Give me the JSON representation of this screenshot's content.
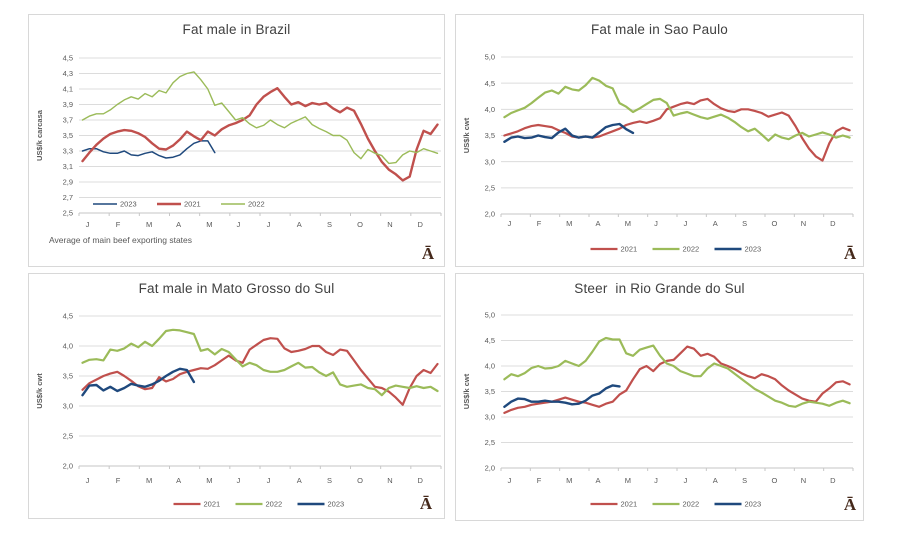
{
  "page": {
    "background": "#ffffff"
  },
  "colors": {
    "series_2021": "#C0504D",
    "series_2022": "#9BBB59",
    "series_2023": "#1F497D",
    "gridline": "#DCDCDC",
    "axis_line": "#C6C6C6",
    "axis_text": "#595959",
    "title_text": "#404040",
    "panel_border": "#D8D8D8",
    "watermark": "#45291B"
  },
  "watermark_glyph": "Ā",
  "chart_data": [
    {
      "id": "brazil",
      "type": "line",
      "title": "Fat male in Brazil",
      "ylabel": "US$/k carcasa",
      "ylim": [
        2.5,
        4.5
      ],
      "y_ticks": [
        "4,5",
        "4,3",
        "4,1",
        "3,9",
        "3,7",
        "3,5",
        "3,3",
        "3,1",
        "2,9",
        "2,7",
        "2,5"
      ],
      "x_tick_labels": [
        "J",
        "F",
        "M",
        "A",
        "M",
        "J",
        "J",
        "A",
        "S",
        "O",
        "N",
        "D"
      ],
      "x_resolution": "weekly",
      "grid": true,
      "legend_position": "inside-bottom-left",
      "footnote": "Average  of main beef exporting states",
      "watermark": "Ā",
      "series": [
        {
          "name": "2023",
          "color": "#1F497D",
          "values": [
            3.3,
            3.33,
            3.33,
            3.29,
            3.27,
            3.27,
            3.3,
            3.25,
            3.24,
            3.27,
            3.29,
            3.24,
            3.21,
            3.22,
            3.25,
            3.33,
            3.4,
            3.43,
            3.43,
            3.28
          ]
        },
        {
          "name": "2021",
          "color": "#C0504D",
          "values": [
            3.17,
            3.28,
            3.38,
            3.46,
            3.52,
            3.55,
            3.57,
            3.56,
            3.53,
            3.48,
            3.4,
            3.33,
            3.32,
            3.37,
            3.45,
            3.55,
            3.49,
            3.44,
            3.55,
            3.5,
            3.58,
            3.63,
            3.66,
            3.7,
            3.76,
            3.9,
            4.0,
            4.06,
            4.11,
            4.0,
            3.9,
            3.93,
            3.88,
            3.92,
            3.9,
            3.92,
            3.85,
            3.8,
            3.86,
            3.82,
            3.65,
            3.46,
            3.3,
            3.16,
            3.06,
            3.0,
            2.92,
            2.97,
            3.32,
            3.56,
            3.52,
            3.64
          ]
        },
        {
          "name": "2022",
          "color": "#9BBB59",
          "values": [
            3.7,
            3.75,
            3.78,
            3.78,
            3.83,
            3.9,
            3.96,
            4.0,
            3.97,
            4.04,
            4.0,
            4.08,
            4.05,
            4.18,
            4.26,
            4.3,
            4.32,
            4.22,
            4.1,
            3.89,
            3.92,
            3.81,
            3.7,
            3.73,
            3.65,
            3.6,
            3.63,
            3.7,
            3.64,
            3.6,
            3.66,
            3.7,
            3.74,
            3.64,
            3.59,
            3.55,
            3.5,
            3.5,
            3.44,
            3.28,
            3.2,
            3.32,
            3.27,
            3.24,
            3.14,
            3.15,
            3.25,
            3.3,
            3.28,
            3.33,
            3.3,
            3.27
          ]
        }
      ]
    },
    {
      "id": "saopaulo",
      "type": "line",
      "title": "Fat male in Sao Paulo",
      "ylabel": "US$/k cwt",
      "ylim": [
        2.0,
        5.0
      ],
      "y_ticks": [
        "5,0",
        "4,5",
        "4,0",
        "3,5",
        "3,0",
        "2,5",
        "2,0"
      ],
      "x_tick_labels": [
        "J",
        "F",
        "M",
        "A",
        "M",
        "J",
        "J",
        "A",
        "S",
        "O",
        "N",
        "D"
      ],
      "x_resolution": "weekly",
      "grid": true,
      "legend_position": "bottom-center",
      "footnote": "",
      "watermark": "Ā",
      "series": [
        {
          "name": "2021",
          "color": "#C0504D",
          "values": [
            3.5,
            3.54,
            3.58,
            3.64,
            3.68,
            3.7,
            3.68,
            3.66,
            3.6,
            3.55,
            3.48,
            3.46,
            3.48,
            3.46,
            3.48,
            3.53,
            3.58,
            3.63,
            3.7,
            3.74,
            3.77,
            3.74,
            3.78,
            3.83,
            4.0,
            4.05,
            4.1,
            4.13,
            4.1,
            4.17,
            4.2,
            4.1,
            4.02,
            3.97,
            3.95,
            4.0,
            4.0,
            3.97,
            3.93,
            3.86,
            3.9,
            3.94,
            3.88,
            3.68,
            3.45,
            3.25,
            3.1,
            3.02,
            3.35,
            3.58,
            3.65,
            3.6
          ]
        },
        {
          "name": "2022",
          "color": "#9BBB59",
          "values": [
            3.85,
            3.93,
            3.98,
            4.03,
            4.12,
            4.22,
            4.32,
            4.36,
            4.3,
            4.43,
            4.38,
            4.36,
            4.46,
            4.6,
            4.55,
            4.45,
            4.4,
            4.12,
            4.05,
            3.95,
            4.02,
            4.1,
            4.18,
            4.2,
            4.12,
            3.88,
            3.92,
            3.95,
            3.9,
            3.85,
            3.82,
            3.86,
            3.9,
            3.84,
            3.76,
            3.66,
            3.58,
            3.63,
            3.52,
            3.4,
            3.52,
            3.46,
            3.43,
            3.5,
            3.55,
            3.48,
            3.52,
            3.56,
            3.52,
            3.46,
            3.5,
            3.46
          ]
        },
        {
          "name": "2023",
          "color": "#1F497D",
          "values": [
            3.38,
            3.46,
            3.48,
            3.45,
            3.46,
            3.5,
            3.47,
            3.45,
            3.56,
            3.63,
            3.5,
            3.46,
            3.48,
            3.46,
            3.56,
            3.66,
            3.7,
            3.72,
            3.62,
            3.55
          ]
        }
      ]
    },
    {
      "id": "matogrosso",
      "type": "line",
      "title": "Fat male in Mato Grosso do Sul",
      "ylabel": "US$/k cwt",
      "ylim": [
        2.0,
        4.5
      ],
      "y_ticks": [
        "4,5",
        "4,0",
        "3,5",
        "3,0",
        "2,5",
        "2,0"
      ],
      "x_tick_labels": [
        "J",
        "F",
        "M",
        "A",
        "M",
        "J",
        "J",
        "A",
        "S",
        "O",
        "N",
        "D"
      ],
      "x_resolution": "weekly",
      "grid": true,
      "legend_position": "bottom-center",
      "footnote": "",
      "watermark": "Ā",
      "series": [
        {
          "name": "2021",
          "color": "#C0504D",
          "values": [
            3.27,
            3.38,
            3.44,
            3.5,
            3.54,
            3.57,
            3.5,
            3.42,
            3.33,
            3.28,
            3.3,
            3.48,
            3.41,
            3.45,
            3.53,
            3.57,
            3.6,
            3.63,
            3.62,
            3.68,
            3.76,
            3.84,
            3.76,
            3.72,
            3.94,
            4.02,
            4.1,
            4.13,
            4.12,
            3.96,
            3.9,
            3.92,
            3.95,
            4.0,
            4.0,
            3.9,
            3.85,
            3.94,
            3.92,
            3.76,
            3.6,
            3.46,
            3.32,
            3.3,
            3.24,
            3.14,
            3.02,
            3.3,
            3.5,
            3.6,
            3.55,
            3.7
          ]
        },
        {
          "name": "2022",
          "color": "#9BBB59",
          "values": [
            3.72,
            3.77,
            3.78,
            3.76,
            3.94,
            3.92,
            3.96,
            4.04,
            3.98,
            4.07,
            4.0,
            4.12,
            4.25,
            4.27,
            4.26,
            4.23,
            4.2,
            3.92,
            3.95,
            3.86,
            3.95,
            3.9,
            3.78,
            3.66,
            3.72,
            3.68,
            3.6,
            3.57,
            3.57,
            3.6,
            3.66,
            3.72,
            3.64,
            3.65,
            3.56,
            3.5,
            3.56,
            3.36,
            3.32,
            3.34,
            3.36,
            3.3,
            3.28,
            3.18,
            3.3,
            3.34,
            3.32,
            3.3,
            3.33,
            3.3,
            3.32,
            3.25
          ]
        },
        {
          "name": "2023",
          "color": "#1F497D",
          "values": [
            3.18,
            3.34,
            3.35,
            3.26,
            3.32,
            3.25,
            3.3,
            3.37,
            3.34,
            3.32,
            3.36,
            3.42,
            3.5,
            3.57,
            3.62,
            3.6,
            3.4
          ]
        }
      ]
    },
    {
      "id": "riogrande",
      "type": "line",
      "title": "Steer  in Rio Grande do Sul",
      "ylabel": "US$/k cwt",
      "ylim": [
        2.0,
        5.0
      ],
      "y_ticks": [
        "5,0",
        "4,5",
        "4,0",
        "3,5",
        "3,0",
        "2,5",
        "2,0"
      ],
      "x_tick_labels": [
        "J",
        "F",
        "M",
        "A",
        "M",
        "J",
        "J",
        "A",
        "S",
        "O",
        "N",
        "D"
      ],
      "x_resolution": "weekly",
      "grid": true,
      "legend_position": "bottom-center",
      "footnote": "",
      "watermark": "Ā",
      "series": [
        {
          "name": "2021",
          "color": "#C0504D",
          "values": [
            3.08,
            3.14,
            3.18,
            3.2,
            3.24,
            3.26,
            3.28,
            3.3,
            3.34,
            3.38,
            3.34,
            3.3,
            3.28,
            3.24,
            3.2,
            3.26,
            3.3,
            3.44,
            3.52,
            3.74,
            3.94,
            4.0,
            3.9,
            4.04,
            4.1,
            4.12,
            4.25,
            4.38,
            4.34,
            4.2,
            4.24,
            4.18,
            4.05,
            4.0,
            3.94,
            3.86,
            3.8,
            3.76,
            3.84,
            3.8,
            3.74,
            3.62,
            3.52,
            3.44,
            3.36,
            3.32,
            3.3,
            3.46,
            3.56,
            3.68,
            3.7,
            3.64
          ]
        },
        {
          "name": "2022",
          "color": "#9BBB59",
          "values": [
            3.74,
            3.84,
            3.8,
            3.86,
            3.96,
            4.0,
            3.95,
            3.96,
            4.0,
            4.1,
            4.05,
            4.0,
            4.1,
            4.28,
            4.48,
            4.55,
            4.52,
            4.52,
            4.25,
            4.2,
            4.32,
            4.36,
            4.4,
            4.2,
            4.05,
            4.0,
            3.9,
            3.85,
            3.8,
            3.8,
            3.95,
            4.05,
            4.0,
            3.95,
            3.85,
            3.75,
            3.65,
            3.55,
            3.48,
            3.4,
            3.32,
            3.28,
            3.22,
            3.2,
            3.26,
            3.3,
            3.28,
            3.26,
            3.22,
            3.28,
            3.32,
            3.27
          ]
        },
        {
          "name": "2023",
          "color": "#1F497D",
          "values": [
            3.2,
            3.3,
            3.36,
            3.35,
            3.3,
            3.3,
            3.32,
            3.3,
            3.3,
            3.28,
            3.25,
            3.26,
            3.32,
            3.42,
            3.46,
            3.56,
            3.62,
            3.6
          ]
        }
      ]
    }
  ]
}
